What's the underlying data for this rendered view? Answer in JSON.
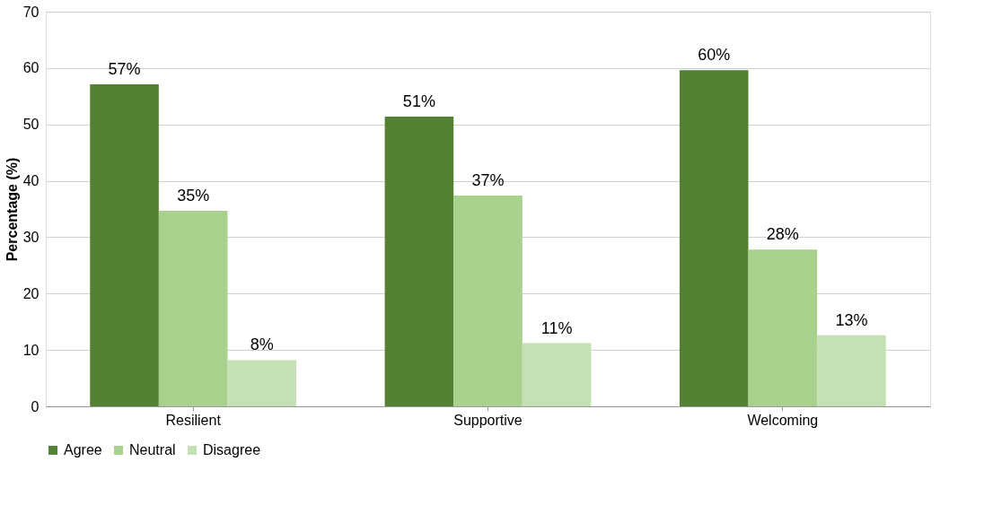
{
  "chart_data": {
    "type": "bar",
    "ylabel": "Percentage (%)",
    "categories": [
      "Resilient",
      "Supportive",
      "Welcoming"
    ],
    "series": [
      {
        "name": "Agree",
        "color": "#548235",
        "values": [
          57.1,
          51.4,
          59.6
        ],
        "value_labels": [
          "57%",
          "51%",
          "60%"
        ]
      },
      {
        "name": "Neutral",
        "color": "#a9d18e",
        "values": [
          34.7,
          37.4,
          27.8
        ],
        "value_labels": [
          "35%",
          "37%",
          "28%"
        ]
      },
      {
        "name": "Disagree",
        "color": "#c5e0b4",
        "values": [
          8.2,
          11.2,
          12.6
        ],
        "value_labels": [
          "8%",
          "11%",
          "13%"
        ]
      }
    ],
    "ylim": [
      0,
      70
    ],
    "yticks": [
      0,
      10,
      20,
      30,
      40,
      50,
      60,
      70
    ],
    "grid": "y",
    "legend": "bottom"
  }
}
